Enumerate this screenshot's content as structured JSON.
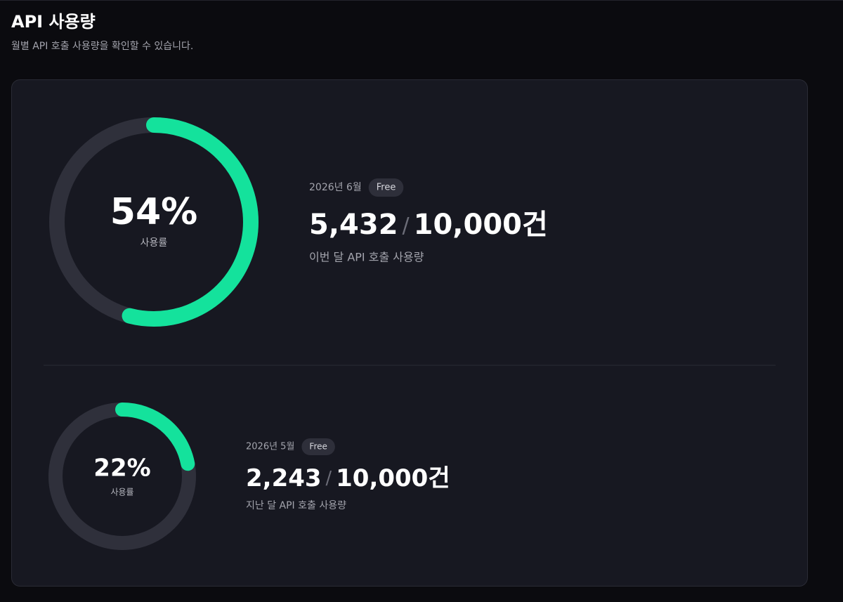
{
  "header": {
    "title": "API 사용량",
    "subtitle": "월별 API 호출 사용량을 확인할 수 있습니다."
  },
  "cards": [
    {
      "month": "2026년 6월",
      "plan": "Free",
      "percent": {
        "value": 54,
        "label": "54%"
      },
      "percent_caption": "사용률",
      "used": "5,432",
      "separator": "/",
      "limit": "10,000건",
      "description": "이번 달 API 호출 사용량"
    },
    {
      "month": "2026년 5월",
      "plan": "Free",
      "percent": {
        "value": 22,
        "label": "22%"
      },
      "percent_caption": "사용률",
      "used": "2,243",
      "separator": "/",
      "limit": "10,000건",
      "description": "지난 달 API 호출 사용량"
    }
  ]
}
